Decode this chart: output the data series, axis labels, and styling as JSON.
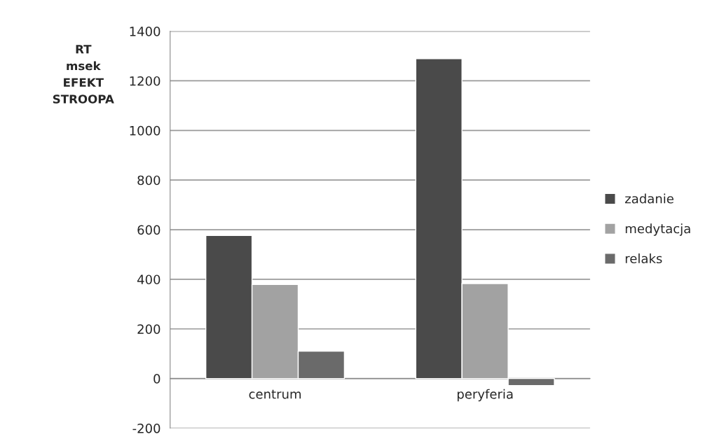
{
  "chart_data": {
    "type": "bar",
    "ylabel": "RT\nmsek\nEFEKT\nSTROOPA",
    "categories": [
      "centrum",
      "peryferia"
    ],
    "series": [
      {
        "name": "zadanie",
        "color": "#4a4a4a",
        "values": [
          577,
          1289
        ]
      },
      {
        "name": "medytacja",
        "color": "#a2a2a2",
        "values": [
          379,
          383
        ]
      },
      {
        "name": "relaks",
        "color": "#6a6a6a",
        "values": [
          110,
          -28
        ]
      }
    ],
    "ylim": [
      -200,
      1400
    ],
    "yticks": [
      -200,
      0,
      200,
      400,
      600,
      800,
      1000,
      1200,
      1400
    ],
    "grid": "y",
    "legend": "right"
  }
}
